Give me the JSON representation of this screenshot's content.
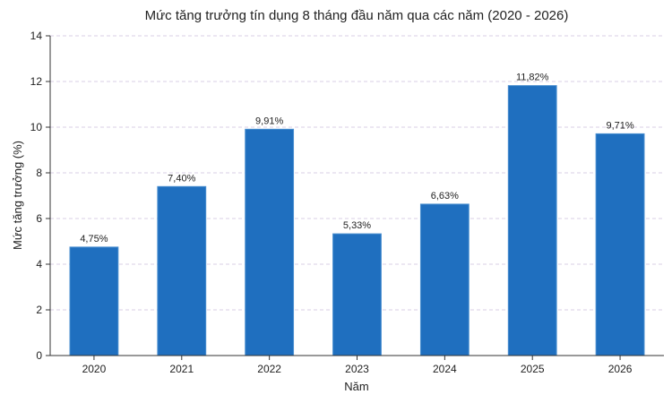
{
  "chart_data": {
    "type": "bar",
    "title": "Mức tăng trưởng tín dụng 8 tháng đầu năm qua các năm (2020 - 2026)",
    "xlabel": "Năm",
    "ylabel": "Mức tăng trưởng (%)",
    "categories": [
      "2020",
      "2021",
      "2022",
      "2023",
      "2024",
      "2025",
      "2026"
    ],
    "values": [
      4.75,
      7.4,
      9.91,
      5.33,
      6.63,
      11.82,
      9.71
    ],
    "data_labels": [
      "4,75%",
      "7,40%",
      "9,91%",
      "5,33%",
      "6,63%",
      "11,82%",
      "9,71%"
    ],
    "ylim": [
      0,
      14
    ],
    "yticks": [
      0,
      2,
      4,
      6,
      8,
      10,
      12,
      14
    ],
    "grid": true,
    "bar_color": "#1f6fbf",
    "grid_color": "#d9cfe6"
  }
}
